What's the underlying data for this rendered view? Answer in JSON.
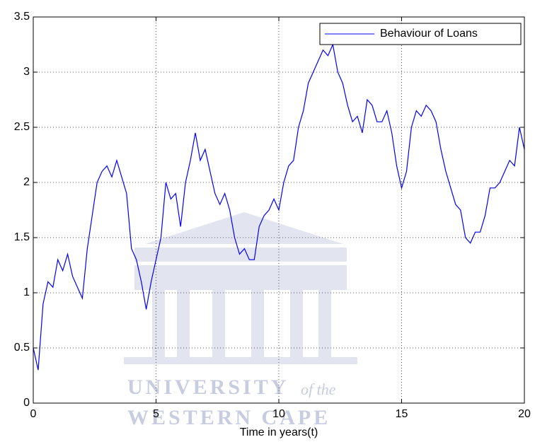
{
  "chart_data": {
    "type": "line",
    "xlabel": "Time in years(t)",
    "x": [
      0,
      0.2,
      0.4,
      0.6,
      0.8,
      1,
      1.2,
      1.4,
      1.6,
      1.8,
      2,
      2.2,
      2.4,
      2.6,
      2.8,
      3,
      3.2,
      3.4,
      3.6,
      3.8,
      4,
      4.2,
      4.4,
      4.6,
      4.8,
      5,
      5.2,
      5.4,
      5.6,
      5.8,
      6,
      6.2,
      6.4,
      6.6,
      6.8,
      7,
      7.2,
      7.4,
      7.6,
      7.8,
      8,
      8.2,
      8.4,
      8.6,
      8.8,
      9,
      9.2,
      9.4,
      9.6,
      9.8,
      10,
      10.2,
      10.4,
      10.6,
      10.8,
      11,
      11.2,
      11.4,
      11.6,
      11.8,
      12,
      12.2,
      12.4,
      12.6,
      12.8,
      13,
      13.2,
      13.4,
      13.6,
      13.8,
      14,
      14.2,
      14.4,
      14.6,
      14.8,
      15,
      15.2,
      15.4,
      15.6,
      15.8,
      16,
      16.2,
      16.4,
      16.6,
      16.8,
      17,
      17.2,
      17.4,
      17.6,
      17.8,
      18,
      18.2,
      18.4,
      18.6,
      18.8,
      19,
      19.2,
      19.4,
      19.6,
      19.8,
      20
    ],
    "series": [
      {
        "name": "Behaviour of Loans",
        "color": "#0000ff",
        "values": [
          0.5,
          0.3,
          0.9,
          1.1,
          1.05,
          1.3,
          1.2,
          1.35,
          1.15,
          1.05,
          0.95,
          1.4,
          1.7,
          2.0,
          2.1,
          2.15,
          2.05,
          2.2,
          2.05,
          1.9,
          1.4,
          1.3,
          1.1,
          0.85,
          1.1,
          1.3,
          1.5,
          2.0,
          1.85,
          1.9,
          1.6,
          2.0,
          2.2,
          2.45,
          2.2,
          2.3,
          2.1,
          1.9,
          1.8,
          1.9,
          1.75,
          1.5,
          1.35,
          1.4,
          1.3,
          1.3,
          1.6,
          1.7,
          1.75,
          1.85,
          1.75,
          2.0,
          2.15,
          2.2,
          2.5,
          2.65,
          2.9,
          3.0,
          3.1,
          3.2,
          3.15,
          3.25,
          3.0,
          2.9,
          2.7,
          2.55,
          2.6,
          2.45,
          2.75,
          2.7,
          2.55,
          2.55,
          2.65,
          2.45,
          2.15,
          1.95,
          2.1,
          2.5,
          2.65,
          2.6,
          2.7,
          2.65,
          2.55,
          2.3,
          2.1,
          1.95,
          1.8,
          1.75,
          1.5,
          1.45,
          1.55,
          1.55,
          1.7,
          1.95,
          1.95,
          2.0,
          2.1,
          2.2,
          2.15,
          2.5,
          2.3
        ]
      }
    ],
    "xlim": [
      0,
      20
    ],
    "xticks": [
      0,
      5,
      10,
      15,
      20
    ],
    "ylim": [
      0,
      3.5
    ],
    "yticks": [
      0,
      0.5,
      1,
      1.5,
      2,
      2.5,
      3,
      3.5
    ],
    "grid": true,
    "legend": "top-right",
    "annotations": [
      "UNIVERSITY",
      "of the",
      "WESTERN CAPE"
    ]
  }
}
